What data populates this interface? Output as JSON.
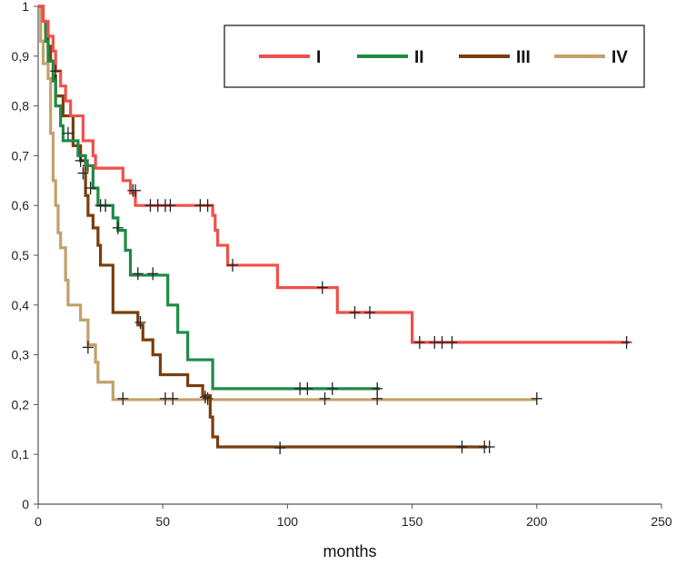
{
  "chart_data": {
    "type": "line",
    "subtype": "step",
    "title": "",
    "xlabel": "months",
    "ylabel": "",
    "xlim": [
      0,
      250
    ],
    "ylim": [
      0,
      1
    ],
    "x_ticks": [
      0,
      50,
      100,
      150,
      200,
      250
    ],
    "x_tick_labels": [
      "0",
      "50",
      "100",
      "150",
      "200",
      "250"
    ],
    "y_ticks": [
      0,
      0.1,
      0.2,
      0.3,
      0.4,
      0.5,
      0.6,
      0.7,
      0.8,
      0.9,
      1
    ],
    "y_tick_labels": [
      "0",
      "0,1",
      "0,2",
      "0,3",
      "0,4",
      "0,5",
      "0,6",
      "0,7",
      "0,8",
      "0,9",
      "1"
    ],
    "grid": false,
    "legend_position": "top-right",
    "censor_marker_color": "#222222",
    "series": [
      {
        "name": "I",
        "color": "#f0504a",
        "steps": [
          [
            0,
            1
          ],
          [
            2,
            0.97
          ],
          [
            4,
            0.94
          ],
          [
            6,
            0.91
          ],
          [
            7,
            0.87
          ],
          [
            9,
            0.84
          ],
          [
            11,
            0.81
          ],
          [
            13,
            0.78
          ],
          [
            18,
            0.76
          ],
          [
            18,
            0.73
          ],
          [
            22,
            0.7
          ],
          [
            23,
            0.675
          ],
          [
            34,
            0.65
          ],
          [
            37,
            0.625
          ],
          [
            39,
            0.6
          ],
          [
            42,
            0.6
          ],
          [
            65,
            0.6
          ],
          [
            70,
            0.58
          ],
          [
            71,
            0.55
          ],
          [
            72,
            0.52
          ],
          [
            76,
            0.48
          ],
          [
            96,
            0.435
          ],
          [
            110,
            0.435
          ],
          [
            120,
            0.385
          ],
          [
            150,
            0.325
          ],
          [
            237,
            0.325
          ]
        ],
        "censored": [
          [
            7,
            0.87
          ],
          [
            38,
            0.63
          ],
          [
            39,
            0.63
          ],
          [
            45,
            0.6
          ],
          [
            48,
            0.6
          ],
          [
            51,
            0.6
          ],
          [
            53,
            0.6
          ],
          [
            65,
            0.6
          ],
          [
            68,
            0.6
          ],
          [
            78,
            0.48
          ],
          [
            114,
            0.435
          ],
          [
            127,
            0.385
          ],
          [
            133,
            0.385
          ],
          [
            153,
            0.325
          ],
          [
            159,
            0.325
          ],
          [
            162,
            0.325
          ],
          [
            166,
            0.325
          ],
          [
            236,
            0.325
          ]
        ]
      },
      {
        "name": "II",
        "color": "#1e8a46",
        "steps": [
          [
            0,
            1
          ],
          [
            2,
            0.97
          ],
          [
            3,
            0.93
          ],
          [
            4,
            0.89
          ],
          [
            6,
            0.85
          ],
          [
            7,
            0.8
          ],
          [
            9,
            0.76
          ],
          [
            10,
            0.73
          ],
          [
            16,
            0.7
          ],
          [
            19,
            0.68
          ],
          [
            22,
            0.635
          ],
          [
            24,
            0.6
          ],
          [
            30,
            0.575
          ],
          [
            32,
            0.55
          ],
          [
            35,
            0.51
          ],
          [
            37,
            0.46
          ],
          [
            50,
            0.46
          ],
          [
            52,
            0.4
          ],
          [
            56,
            0.345
          ],
          [
            60,
            0.29
          ],
          [
            70,
            0.232
          ],
          [
            137,
            0.232
          ]
        ],
        "censored": [
          [
            12,
            0.745
          ],
          [
            18,
            0.665
          ],
          [
            21,
            0.635
          ],
          [
            25,
            0.6
          ],
          [
            27,
            0.6
          ],
          [
            32,
            0.555
          ],
          [
            40,
            0.463
          ],
          [
            46,
            0.463
          ],
          [
            105,
            0.232
          ],
          [
            108,
            0.232
          ],
          [
            118,
            0.232
          ],
          [
            136,
            0.232
          ]
        ]
      },
      {
        "name": "III",
        "color": "#7a3e0e",
        "steps": [
          [
            0,
            1
          ],
          [
            2,
            0.97
          ],
          [
            3,
            0.95
          ],
          [
            4,
            0.92
          ],
          [
            5,
            0.89
          ],
          [
            6,
            0.86
          ],
          [
            7,
            0.82
          ],
          [
            10,
            0.78
          ],
          [
            14,
            0.72
          ],
          [
            17,
            0.69
          ],
          [
            19,
            0.62
          ],
          [
            20,
            0.58
          ],
          [
            22,
            0.555
          ],
          [
            24,
            0.52
          ],
          [
            25,
            0.48
          ],
          [
            30,
            0.44
          ],
          [
            30,
            0.385
          ],
          [
            40,
            0.36
          ],
          [
            42,
            0.33
          ],
          [
            46,
            0.3
          ],
          [
            49,
            0.26
          ],
          [
            60,
            0.238
          ],
          [
            66,
            0.218
          ],
          [
            69,
            0.175
          ],
          [
            70,
            0.135
          ],
          [
            72,
            0.115
          ],
          [
            97,
            0.115
          ],
          [
            180,
            0.115
          ]
        ],
        "censored": [
          [
            17,
            0.69
          ],
          [
            20,
            0.68
          ],
          [
            41,
            0.365
          ],
          [
            170,
            0.115
          ],
          [
            179,
            0.115
          ],
          [
            181,
            0.115
          ],
          [
            97,
            0.113
          ],
          [
            67,
            0.215
          ]
        ]
      },
      {
        "name": "IV",
        "color": "#c4a06a",
        "steps": [
          [
            0,
            1
          ],
          [
            1,
            0.93
          ],
          [
            2,
            0.885
          ],
          [
            4,
            0.855
          ],
          [
            5,
            0.81
          ],
          [
            5,
            0.745
          ],
          [
            6,
            0.69
          ],
          [
            6,
            0.65
          ],
          [
            7,
            0.6
          ],
          [
            8,
            0.575
          ],
          [
            8,
            0.545
          ],
          [
            9,
            0.515
          ],
          [
            11,
            0.485
          ],
          [
            11,
            0.45
          ],
          [
            12,
            0.4
          ],
          [
            17,
            0.37
          ],
          [
            20,
            0.32
          ],
          [
            23,
            0.285
          ],
          [
            24,
            0.245
          ],
          [
            30,
            0.21
          ],
          [
            200,
            0.21
          ]
        ],
        "censored": [
          [
            20,
            0.315
          ],
          [
            34,
            0.212
          ],
          [
            51,
            0.212
          ],
          [
            54,
            0.212
          ],
          [
            68,
            0.212
          ],
          [
            115,
            0.212
          ],
          [
            136,
            0.212
          ],
          [
            200,
            0.212
          ]
        ]
      }
    ]
  }
}
